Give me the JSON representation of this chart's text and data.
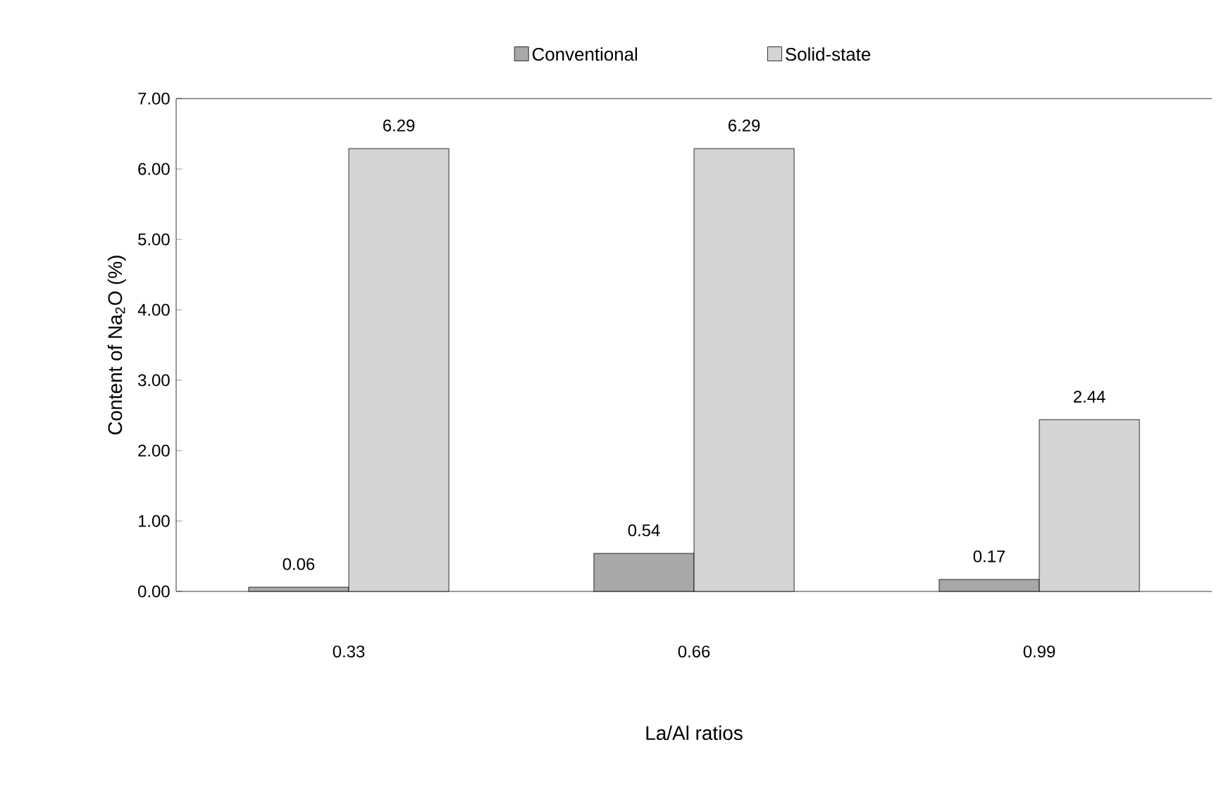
{
  "chart_data": {
    "type": "bar",
    "xlabel": "La/Al ratios",
    "ylabel": "Content of Na$_{2}$O (%)",
    "categories": [
      "0.33",
      "0.66",
      "0.99"
    ],
    "series": [
      {
        "name": "Conventional",
        "color": "#a8a8a8",
        "values": [
          0.06,
          0.54,
          0.17
        ],
        "value_labels": [
          "0.06",
          "0.54",
          "0.17"
        ]
      },
      {
        "name": "Solid-state",
        "color": "#d4d4d4",
        "values": [
          6.29,
          6.29,
          2.44
        ],
        "value_labels": [
          "6.29",
          "6.29",
          "2.44"
        ]
      }
    ],
    "ylim": [
      0,
      7
    ],
    "yticks": [
      {
        "value": 0,
        "label": "0.00"
      },
      {
        "value": 1,
        "label": "1.00"
      },
      {
        "value": 2,
        "label": "2.00"
      },
      {
        "value": 3,
        "label": "3.00"
      },
      {
        "value": 4,
        "label": "4.00"
      },
      {
        "value": 5,
        "label": "5.00"
      },
      {
        "value": 6,
        "label": "6.00"
      },
      {
        "value": 7,
        "label": "7.00"
      }
    ],
    "legend": "top"
  }
}
